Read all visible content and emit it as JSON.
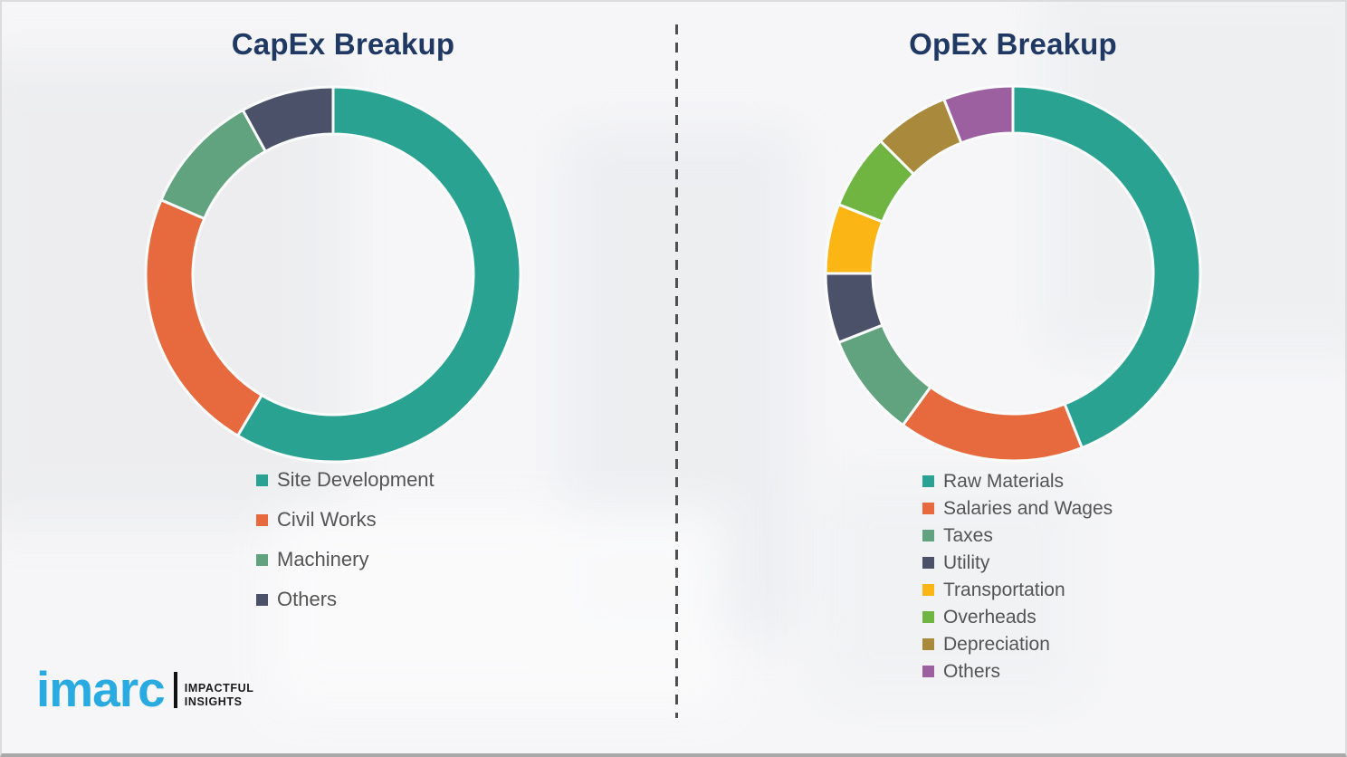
{
  "chart_data": [
    {
      "type": "pie",
      "donut": true,
      "title": "CapEx Breakup",
      "labels": [
        "Site Development",
        "Civil Works",
        "Machinery",
        "Others"
      ],
      "values": [
        58.5,
        23,
        10.5,
        8
      ],
      "colors": [
        "#2aa291",
        "#e7693e",
        "#61a37e",
        "#4a5169"
      ],
      "start_angle_deg": 0,
      "direction": "clockwise",
      "legend_position": "below"
    },
    {
      "type": "pie",
      "donut": true,
      "title": "OpEx Breakup",
      "labels": [
        "Raw Materials",
        "Salaries and Wages",
        "Taxes",
        "Utility",
        "Transportation",
        "Overheads",
        "Depreciation",
        "Others"
      ],
      "values": [
        44,
        16,
        9,
        6,
        6,
        6.5,
        6.5,
        6
      ],
      "colors": [
        "#2aa291",
        "#e7693e",
        "#61a37e",
        "#4a5169",
        "#fbb616",
        "#70b442",
        "#a98a3c",
        "#9c5fa0"
      ],
      "start_angle_deg": 0,
      "direction": "clockwise",
      "legend_position": "below"
    }
  ],
  "logo": {
    "brand": "imarc",
    "brand_color": "#29abe2",
    "tagline_line1": "IMPACTFUL",
    "tagline_line2": "INSIGHTS"
  },
  "styles": {
    "title_color": "#1f3864",
    "legend_text_color": "#545454",
    "segment_gap_color": "#fafbfb",
    "divider_color": "#4f4f4f"
  }
}
